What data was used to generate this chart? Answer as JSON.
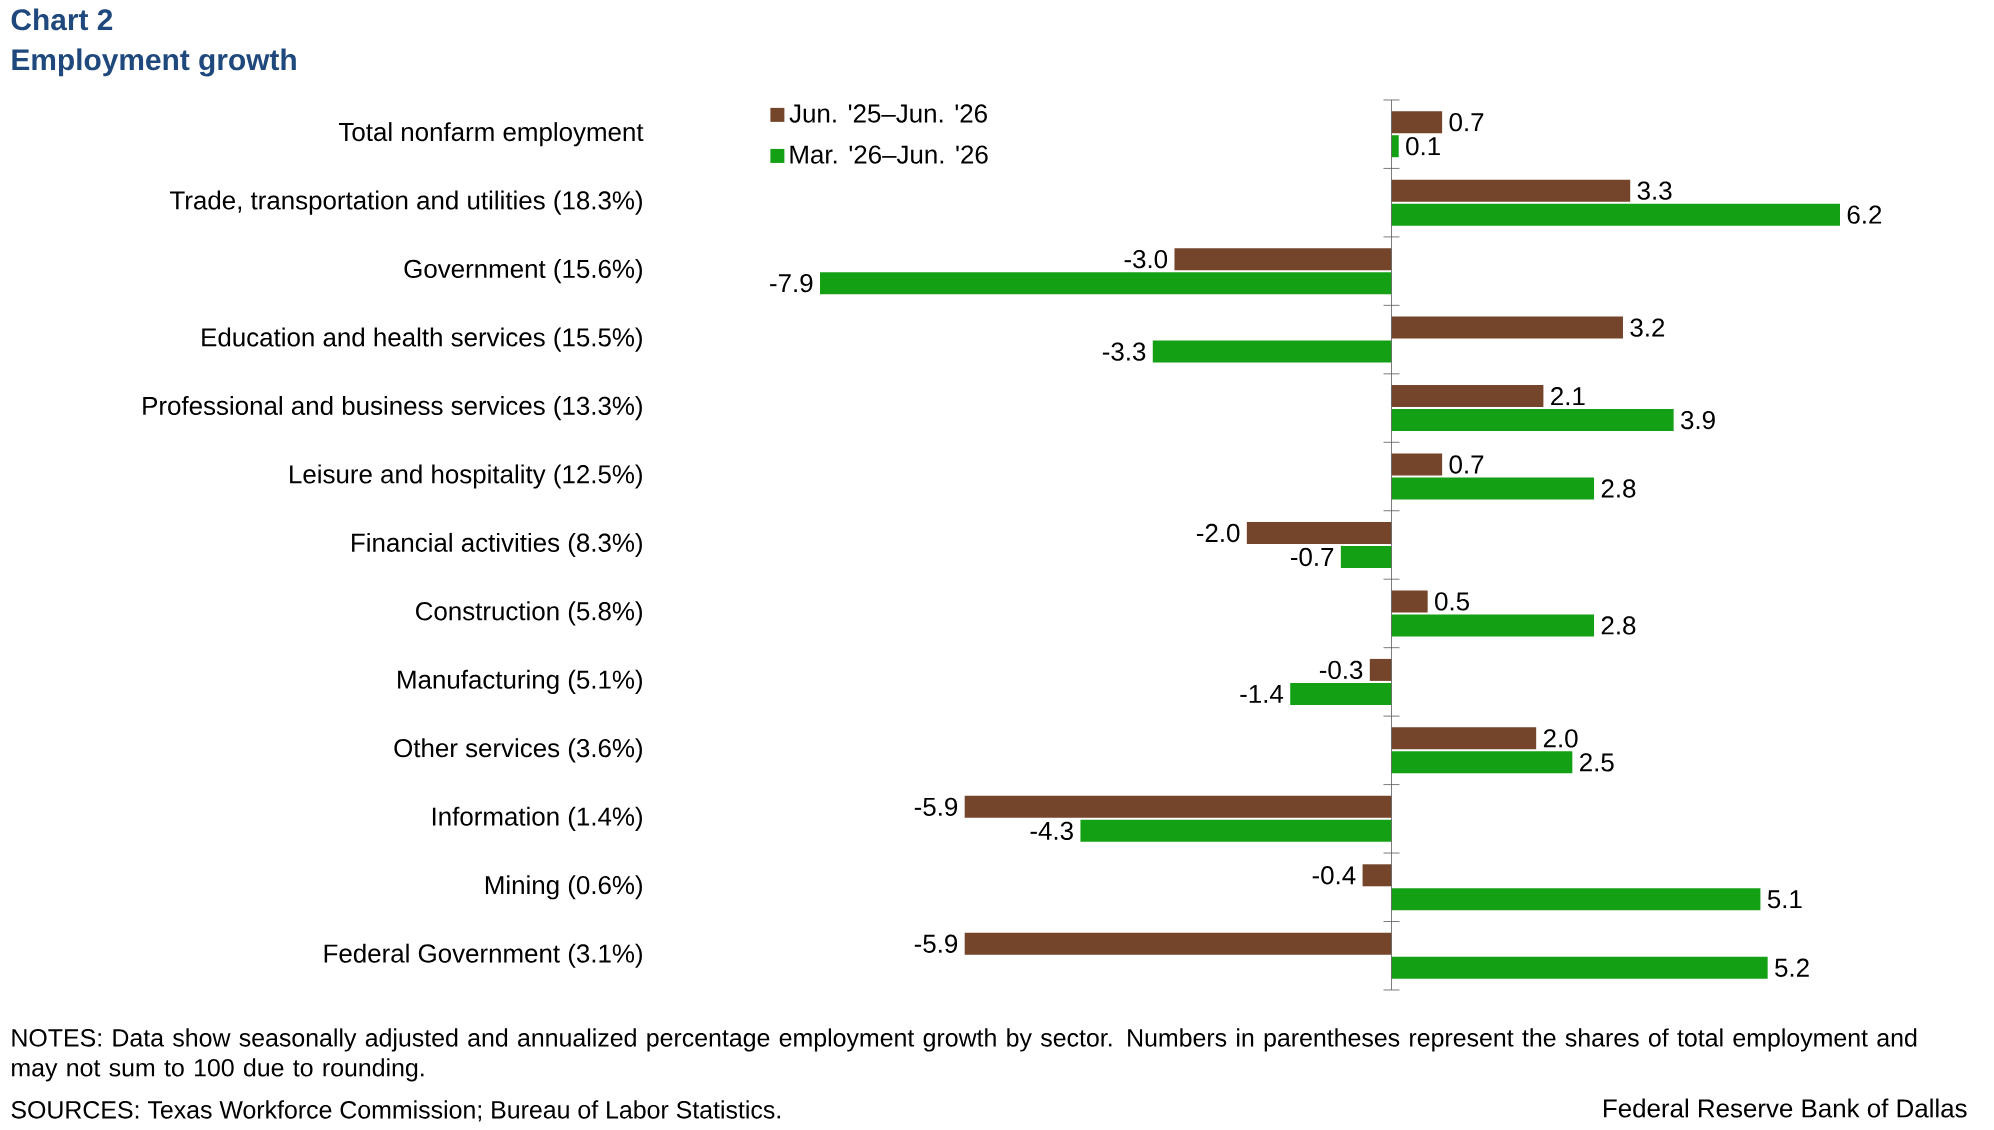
{
  "chart_data": {
    "type": "bar",
    "orientation": "horizontal",
    "title": "Chart 2",
    "subtitle": "Employment growth",
    "categories": [
      "Total nonfarm employment",
      "Trade, transportation and utilities (18.3%)",
      "Government (15.6%)",
      "Education and health services (15.5%)",
      "Professional and business services (13.3%)",
      "Leisure and hospitality (12.5%)",
      "Financial activities (8.3%)",
      "Construction (5.8%)",
      "Manufacturing (5.1%)",
      "Other services (3.6%)",
      "Information (1.4%)",
      "Mining (0.6%)",
      "Federal Government (3.1%)"
    ],
    "series": [
      {
        "name": "Jun. '25–Jun. '26",
        "color": "#74452a",
        "values": [
          0.7,
          3.3,
          -3.0,
          3.2,
          2.1,
          0.7,
          -2.0,
          0.5,
          -0.3,
          2.0,
          -5.9,
          -0.4,
          -5.9
        ],
        "value_labels": [
          "0.7",
          "3.3",
          "-3.0",
          "3.2",
          "2.1",
          "0.7",
          "-2.0",
          "0.5",
          "-0.3",
          "2.0",
          "-5.9",
          "-0.4",
          "-5.9"
        ]
      },
      {
        "name": "Mar. '26–Jun. '26",
        "color": "#14a014",
        "values": [
          0.1,
          6.2,
          -7.9,
          -3.3,
          3.9,
          2.8,
          -0.7,
          2.8,
          -1.4,
          2.5,
          -4.3,
          5.1,
          5.2
        ],
        "value_labels": [
          "0.1",
          "6.2",
          "-7.9",
          "-3.3",
          "3.9",
          "2.8",
          "-0.7",
          "2.8",
          "-1.4",
          "2.5",
          "-4.3",
          "5.1",
          "5.2"
        ]
      }
    ],
    "legend": "top left",
    "annotations": [
      "NOTES: Data show seasonally adjusted and annualized percentage employment growth by sector. Numbers in parentheses represent the shares of total employment and may not sum to 100 due to rounding.",
      "SOURCES: Texas Workforce Commission; Bureau of Labor Statistics.",
      "Federal Reserve Bank of Dallas"
    ]
  }
}
